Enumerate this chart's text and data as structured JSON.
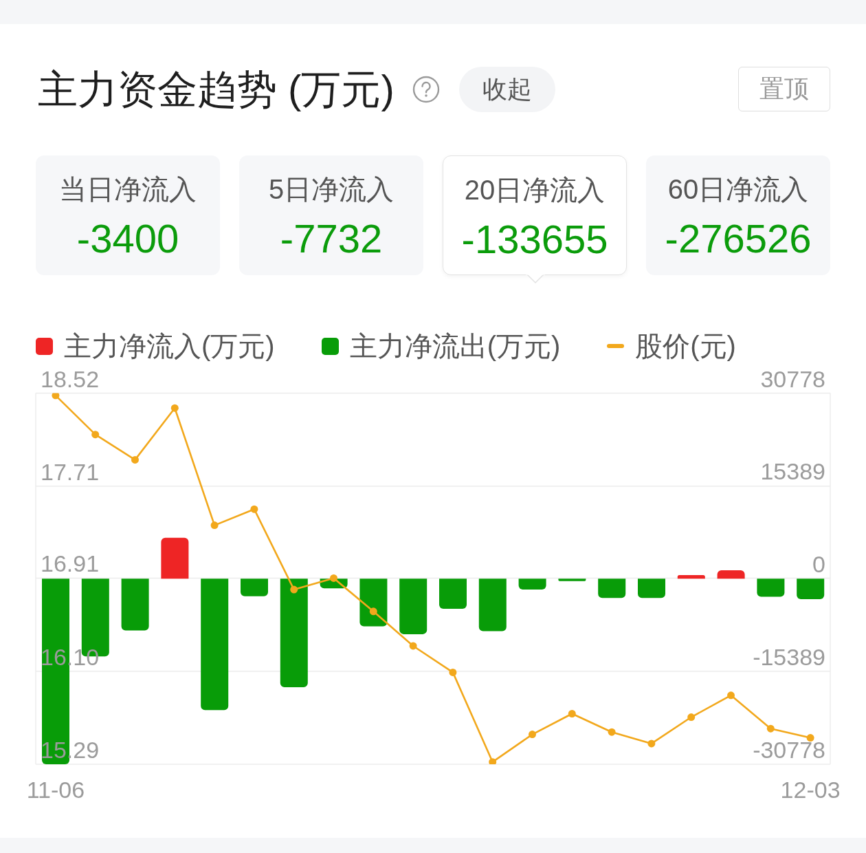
{
  "chart_data": [
    {
      "type": "other",
      "title": "主力资金趋势 (万元)",
      "annotations": [
        "收起",
        "置顶",
        "-3400",
        "-7732",
        "-133655",
        "-276526"
      ],
      "categories": [
        "当日净流入",
        "5日净流入",
        "20日净流入",
        "60日净流入"
      ],
      "color": "#0b9c0b"
    },
    {
      "type": "bar",
      "categories": [
        "11-06",
        null,
        null,
        null,
        null,
        null,
        null,
        null,
        null,
        null,
        null,
        null,
        null,
        null,
        null,
        null,
        null,
        null,
        null,
        "12-03"
      ],
      "series": [
        {
          "name": "主力净流入(万元)",
          "color": "#ee2525",
          "axis": "y2",
          "values": [
            null,
            null,
            null,
            6800,
            null,
            null,
            null,
            null,
            null,
            null,
            null,
            null,
            null,
            null,
            null,
            null,
            600,
            1400,
            null,
            null
          ]
        },
        {
          "name": "主力净流出(万元)",
          "color": "#089c08",
          "axis": "y2",
          "values": [
            -30778,
            -12900,
            -8600,
            null,
            -21800,
            -2900,
            -18000,
            -1600,
            -7900,
            -9200,
            -5000,
            -8700,
            -1800,
            -400,
            -3200,
            -3200,
            null,
            null,
            -3000,
            -3400
          ]
        },
        {
          "name": "股价(元)",
          "type": "line",
          "color": "#f2a81c",
          "values": [
            18.5,
            18.16,
            17.94,
            18.39,
            17.37,
            17.51,
            16.81,
            16.91,
            16.62,
            16.32,
            16.09,
            15.31,
            15.55,
            15.73,
            15.57,
            15.47,
            15.7,
            15.89,
            15.6,
            15.52
          ]
        }
      ],
      "ylim": [
        15.29,
        18.52
      ],
      "yticks": [
        15.29,
        {
          "value": 16.1,
          "label": "16.10"
        },
        16.91,
        17.71,
        18.52
      ],
      "y2lim": [
        -30778,
        30778
      ],
      "y2ticks": [
        -30778,
        -15389,
        0,
        15389,
        30778
      ],
      "grid": "y",
      "legend": "top left",
      "marker": "circle"
    }
  ]
}
